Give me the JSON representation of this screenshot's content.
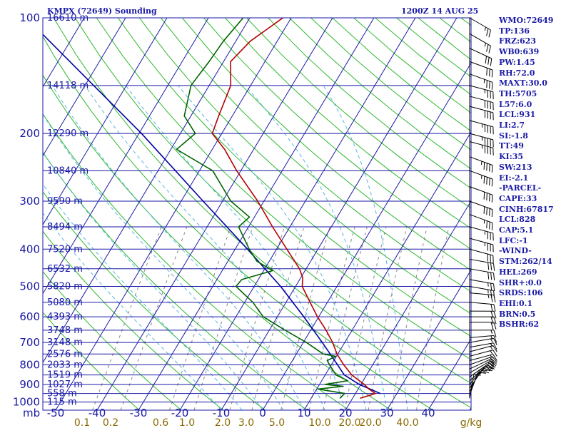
{
  "header": {
    "station_title": "KMPX (72649) Sounding",
    "valid_time": "1200Z 14 AUG 25"
  },
  "stats": [
    "WMO:72649",
    "TP:136",
    "FRZ:623",
    "WB0:639",
    "PW:1.45",
    "RH:72.0",
    "MAXT:30.0",
    "TH:5705",
    "L57:6.0",
    "LCL:931",
    "LI:2.7",
    "SI:-1.8",
    "TT:49",
    "KI:35",
    "SW:213",
    "EI:-2.1",
    "-PARCEL-",
    "CAPE:33",
    "CINH:67817",
    "LCL:828",
    "CAP:5.1",
    "LFC:-1",
    "-WIND-",
    "STM:262/14",
    "HEL:269",
    "SHR+:0.0",
    "SRDS:106",
    "EHI:0.1",
    "BRN:0.5",
    "BSHR:62"
  ],
  "colors": {
    "frame": "#1a1aa6",
    "isobar": "#1a1aa6",
    "isotherm": "#1a1aa6",
    "dry_adiabat": "#2eb82e",
    "moist_adiabat": "#5ab6e6",
    "mixing_ratio": "#888888",
    "temperature": "#b40000",
    "dewpoint": "#006400",
    "parcel": "#0000a0",
    "label": "#1a1aa6",
    "mixing_label": "#8a6a00",
    "wind": "#000000"
  },
  "chart_data": {
    "type": "skew-t",
    "pressure_labels": [
      "100",
      "200",
      "300",
      "400",
      "500",
      "600",
      "700",
      "800",
      "900",
      "1000"
    ],
    "pressure_unit_label": "mb",
    "temperature_labels": [
      "-50",
      "-40",
      "-30",
      "-20",
      "-10",
      "0",
      "10",
      "20",
      "30",
      "40"
    ],
    "mixing_ratio_labels": [
      "0.1",
      "0.2",
      "0.6",
      "1.0",
      "2.0",
      "3.0",
      "5.0",
      "10.0",
      "20.0",
      "20.0",
      "40.0"
    ],
    "mixing_ratio_unit": "g/kg",
    "height_levels": [
      {
        "p": 100,
        "label": "16610 m"
      },
      {
        "p": 150,
        "label": "14118 m"
      },
      {
        "p": 200,
        "label": "12290 m"
      },
      {
        "p": 250,
        "label": "10840 m"
      },
      {
        "p": 300,
        "label": "9590 m"
      },
      {
        "p": 350,
        "label": "8494 m"
      },
      {
        "p": 400,
        "label": "7520 m"
      },
      {
        "p": 450,
        "label": "6532 m"
      },
      {
        "p": 500,
        "label": "5820 m"
      },
      {
        "p": 550,
        "label": "5080 m"
      },
      {
        "p": 600,
        "label": "4393 m"
      },
      {
        "p": 650,
        "label": "3748 m"
      },
      {
        "p": 700,
        "label": "3148 m"
      },
      {
        "p": 750,
        "label": "2576 m"
      },
      {
        "p": 800,
        "label": "2033 m"
      },
      {
        "p": 850,
        "label": "1519 m"
      },
      {
        "p": 900,
        "label": "1027 m"
      },
      {
        "p": 950,
        "label": "558 m"
      },
      {
        "p": 1000,
        "label": "115 m"
      }
    ],
    "temperature": {
      "unit": "C",
      "points": [
        [
          978,
          21.8
        ],
        [
          950,
          24.8
        ],
        [
          925,
          22.6
        ],
        [
          900,
          20.8
        ],
        [
          850,
          16.4
        ],
        [
          800,
          13.0
        ],
        [
          750,
          9.8
        ],
        [
          700,
          7.1
        ],
        [
          650,
          3.7
        ],
        [
          600,
          -0.3
        ],
        [
          550,
          -4.2
        ],
        [
          500,
          -8.4
        ],
        [
          475,
          -9.5
        ],
        [
          450,
          -11.6
        ],
        [
          400,
          -17.5
        ],
        [
          350,
          -24.2
        ],
        [
          300,
          -31.5
        ],
        [
          250,
          -41.0
        ],
        [
          220,
          -47.0
        ],
        [
          200,
          -52.3
        ],
        [
          180,
          -53.3
        ],
        [
          150,
          -54.8
        ],
        [
          130,
          -58.3
        ],
        [
          115,
          -56.5
        ],
        [
          100,
          -52.0
        ]
      ]
    },
    "dewpoint": {
      "unit": "C",
      "points": [
        [
          978,
          16.9
        ],
        [
          950,
          17.4
        ],
        [
          925,
          10.3
        ],
        [
          910,
          16.0
        ],
        [
          900,
          11.3
        ],
        [
          880,
          16.3
        ],
        [
          850,
          12.6
        ],
        [
          800,
          9.6
        ],
        [
          780,
          8.4
        ],
        [
          760,
          9.8
        ],
        [
          750,
          6.5
        ],
        [
          700,
          0.8
        ],
        [
          650,
          -6.2
        ],
        [
          600,
          -13.4
        ],
        [
          550,
          -18.0
        ],
        [
          500,
          -24.4
        ],
        [
          480,
          -24.0
        ],
        [
          455,
          -17.8
        ],
        [
          430,
          -23.0
        ],
        [
          400,
          -26.6
        ],
        [
          350,
          -32.4
        ],
        [
          330,
          -31.2
        ],
        [
          300,
          -38.0
        ],
        [
          250,
          -46.8
        ],
        [
          220,
          -58.6
        ],
        [
          200,
          -56.4
        ],
        [
          180,
          -61.6
        ],
        [
          150,
          -64.4
        ],
        [
          130,
          -63.5
        ],
        [
          115,
          -63.0
        ],
        [
          100,
          -61.6
        ]
      ]
    },
    "parcel": {
      "unit": "C",
      "points": [
        [
          950,
          26.0
        ],
        [
          900,
          19.6
        ],
        [
          850,
          14.6
        ],
        [
          800,
          11.5
        ],
        [
          700,
          4.6
        ],
        [
          600,
          -3.6
        ],
        [
          500,
          -13.6
        ],
        [
          400,
          -27.0
        ],
        [
          300,
          -44.7
        ],
        [
          200,
          -69.4
        ],
        [
          100,
          -114.0
        ]
      ]
    },
    "wind_barbs": [
      {
        "p": 978,
        "dir": 190,
        "spd": 10
      },
      {
        "p": 960,
        "dir": 200,
        "spd": 15
      },
      {
        "p": 940,
        "dir": 205,
        "spd": 20
      },
      {
        "p": 920,
        "dir": 215,
        "spd": 20
      },
      {
        "p": 900,
        "dir": 220,
        "spd": 20
      },
      {
        "p": 880,
        "dir": 230,
        "spd": 20
      },
      {
        "p": 860,
        "dir": 235,
        "spd": 20
      },
      {
        "p": 840,
        "dir": 240,
        "spd": 20
      },
      {
        "p": 820,
        "dir": 245,
        "spd": 20
      },
      {
        "p": 800,
        "dir": 250,
        "spd": 20
      },
      {
        "p": 780,
        "dir": 255,
        "spd": 15
      },
      {
        "p": 760,
        "dir": 255,
        "spd": 15
      },
      {
        "p": 740,
        "dir": 255,
        "spd": 15
      },
      {
        "p": 720,
        "dir": 260,
        "spd": 15
      },
      {
        "p": 700,
        "dir": 260,
        "spd": 15
      },
      {
        "p": 680,
        "dir": 265,
        "spd": 15
      },
      {
        "p": 650,
        "dir": 270,
        "spd": 15
      },
      {
        "p": 620,
        "dir": 270,
        "spd": 20
      },
      {
        "p": 600,
        "dir": 270,
        "spd": 20
      },
      {
        "p": 580,
        "dir": 270,
        "spd": 20
      },
      {
        "p": 550,
        "dir": 275,
        "spd": 20
      },
      {
        "p": 520,
        "dir": 275,
        "spd": 25
      },
      {
        "p": 500,
        "dir": 280,
        "spd": 25
      },
      {
        "p": 480,
        "dir": 280,
        "spd": 25
      },
      {
        "p": 450,
        "dir": 280,
        "spd": 30
      },
      {
        "p": 425,
        "dir": 280,
        "spd": 30
      },
      {
        "p": 400,
        "dir": 285,
        "spd": 30
      },
      {
        "p": 375,
        "dir": 285,
        "spd": 35
      },
      {
        "p": 350,
        "dir": 285,
        "spd": 35
      },
      {
        "p": 325,
        "dir": 290,
        "spd": 35
      },
      {
        "p": 300,
        "dir": 290,
        "spd": 40
      },
      {
        "p": 275,
        "dir": 290,
        "spd": 40
      },
      {
        "p": 250,
        "dir": 290,
        "spd": 45
      },
      {
        "p": 230,
        "dir": 290,
        "spd": 45
      },
      {
        "p": 210,
        "dir": 285,
        "spd": 45
      },
      {
        "p": 200,
        "dir": 285,
        "spd": 45
      },
      {
        "p": 185,
        "dir": 285,
        "spd": 45
      },
      {
        "p": 170,
        "dir": 285,
        "spd": 40
      },
      {
        "p": 160,
        "dir": 285,
        "spd": 40
      },
      {
        "p": 150,
        "dir": 285,
        "spd": 35
      },
      {
        "p": 140,
        "dir": 290,
        "spd": 35
      },
      {
        "p": 130,
        "dir": 290,
        "spd": 30
      },
      {
        "p": 120,
        "dir": 295,
        "spd": 30
      },
      {
        "p": 110,
        "dir": 300,
        "spd": 25
      },
      {
        "p": 100,
        "dir": 300,
        "spd": 25
      }
    ]
  }
}
